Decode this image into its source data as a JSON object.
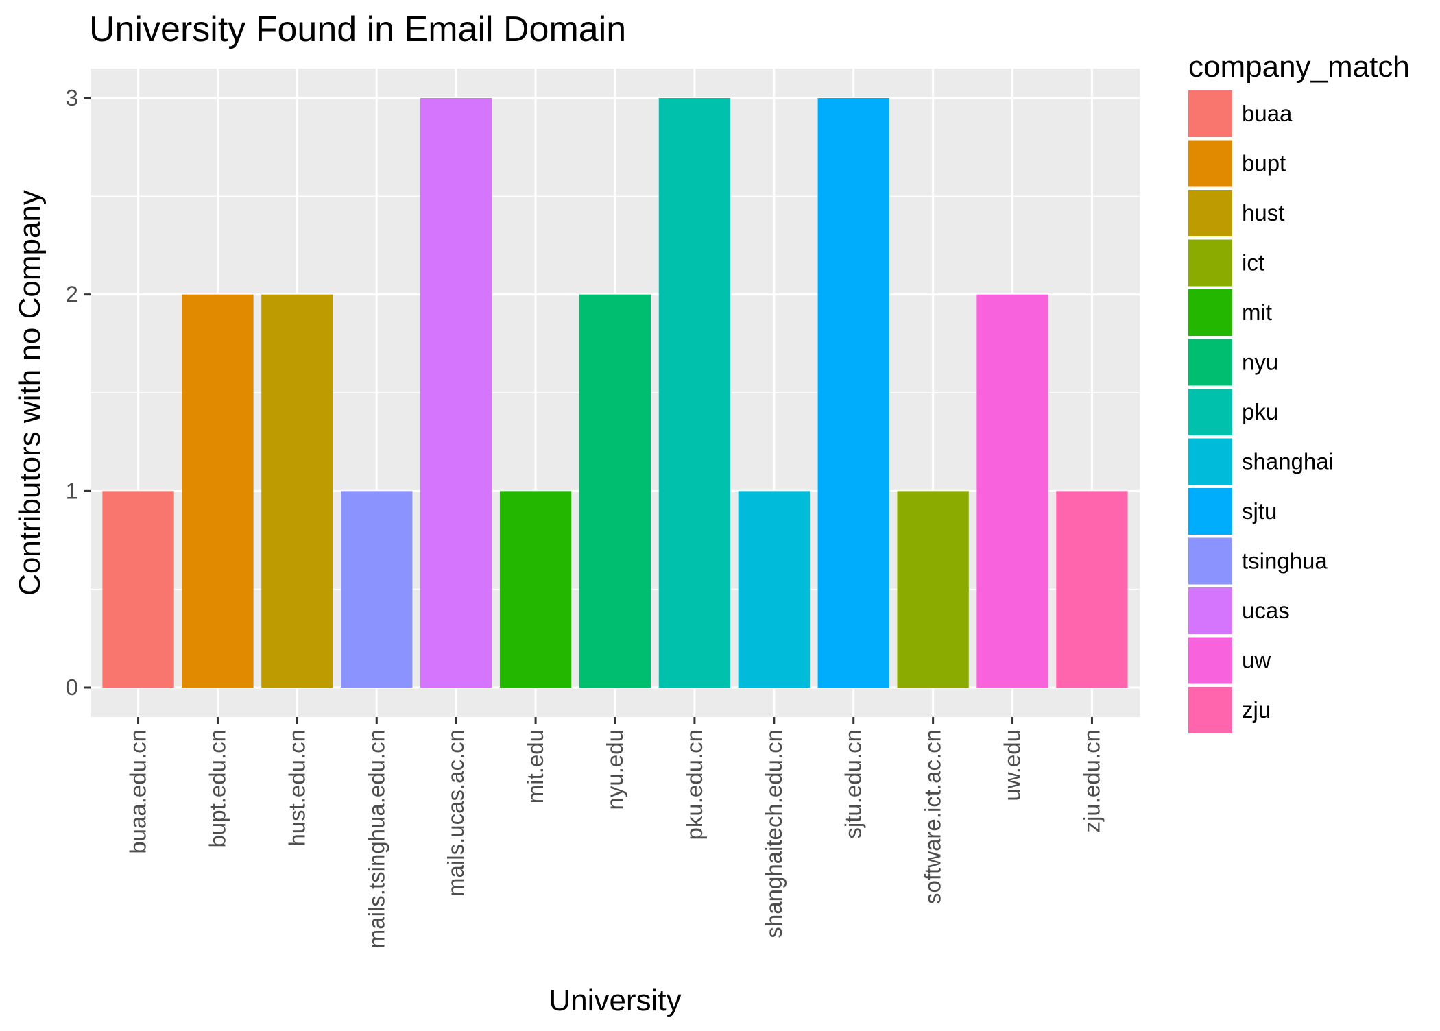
{
  "chart_data": {
    "type": "bar",
    "title": "University Found in Email Domain",
    "xlabel": "University",
    "ylabel": "Contributors with no Company",
    "ylim": [
      -0.15,
      3.15
    ],
    "y_ticks": [
      0,
      1,
      2,
      3
    ],
    "grid": true,
    "legend_position": "right",
    "legend_title": "company_match",
    "categories": [
      "buaa.edu.cn",
      "bupt.edu.cn",
      "hust.edu.cn",
      "mails.tsinghua.edu.cn",
      "mails.ucas.ac.cn",
      "mit.edu",
      "nyu.edu",
      "pku.edu.cn",
      "shanghaitech.edu.cn",
      "sjtu.edu.cn",
      "software.ict.ac.cn",
      "uw.edu",
      "zju.edu.cn"
    ],
    "values": [
      1,
      2,
      2,
      1,
      3,
      1,
      2,
      3,
      1,
      3,
      1,
      2,
      1
    ],
    "fill_group": [
      "buaa",
      "bupt",
      "hust",
      "tsinghua",
      "ucas",
      "mit",
      "nyu",
      "pku",
      "shanghai",
      "sjtu",
      "ict",
      "uw",
      "zju"
    ],
    "legend": [
      {
        "label": "buaa",
        "color": "#F8766D"
      },
      {
        "label": "bupt",
        "color": "#E18A00"
      },
      {
        "label": "hust",
        "color": "#BE9C00"
      },
      {
        "label": "ict",
        "color": "#8CAB00"
      },
      {
        "label": "mit",
        "color": "#24B700"
      },
      {
        "label": "nyu",
        "color": "#00BE70"
      },
      {
        "label": "pku",
        "color": "#00C1AB"
      },
      {
        "label": "shanghai",
        "color": "#00BBDA"
      },
      {
        "label": "sjtu",
        "color": "#00ACFC"
      },
      {
        "label": "tsinghua",
        "color": "#8B93FF"
      },
      {
        "label": "ucas",
        "color": "#D575FE"
      },
      {
        "label": "uw",
        "color": "#F962DD"
      },
      {
        "label": "zju",
        "color": "#FF65AC"
      }
    ],
    "panel_background": "#EBEBEB",
    "grid_color": "#FFFFFF"
  }
}
